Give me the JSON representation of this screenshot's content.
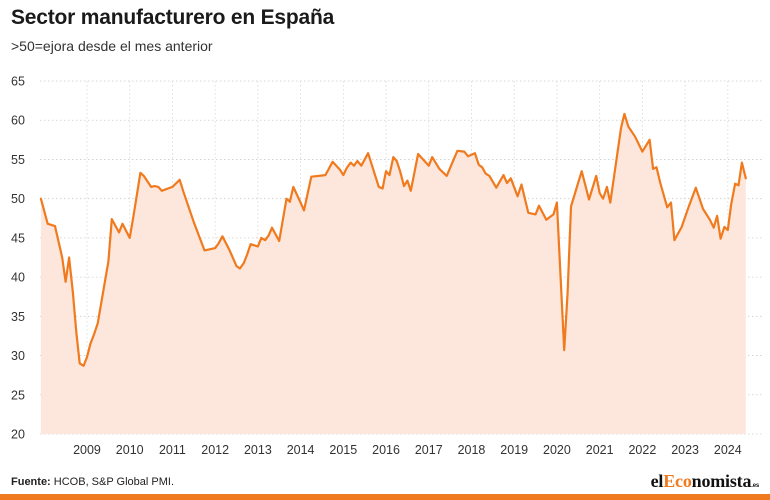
{
  "chart_data": {
    "type": "area",
    "title": "Sector manufacturero en España",
    "subtitle": ">50=ejora desde el mes anterior",
    "ylim": [
      20,
      65
    ],
    "yticks": [
      20,
      25,
      30,
      35,
      40,
      45,
      50,
      55,
      60,
      65
    ],
    "xlim": [
      2007.9,
      2024.8
    ],
    "xticks": [
      2009,
      2010,
      2011,
      2012,
      2013,
      2014,
      2015,
      2016,
      2017,
      2018,
      2019,
      2020,
      2021,
      2022,
      2023,
      2024
    ],
    "grid": true,
    "colors": {
      "line": "#f07a1e",
      "fill": "#fde6dc"
    },
    "series": [
      {
        "x": [
          2007.92,
          2008.08,
          2008.25,
          2008.42,
          2008.5,
          2008.58,
          2008.67,
          2008.75,
          2008.83,
          2008.92,
          2009.0,
          2009.08,
          2009.17,
          2009.25,
          2009.5,
          2009.58,
          2009.67,
          2009.75,
          2009.83,
          2010.0,
          2010.08,
          2010.25,
          2010.33,
          2010.5,
          2010.58,
          2010.67,
          2010.75,
          2011.0,
          2011.17,
          2011.25,
          2011.5,
          2011.75,
          2012.0,
          2012.08,
          2012.17,
          2012.33,
          2012.5,
          2012.58,
          2012.67,
          2012.75,
          2012.83,
          2013.0,
          2013.08,
          2013.17,
          2013.25,
          2013.33,
          2013.5,
          2013.67,
          2013.75,
          2013.83,
          2014.0,
          2014.08,
          2014.25,
          2014.58,
          2014.75,
          2014.92,
          2015.0,
          2015.08,
          2015.17,
          2015.25,
          2015.33,
          2015.42,
          2015.58,
          2015.83,
          2015.92,
          2016.0,
          2016.08,
          2016.17,
          2016.25,
          2016.33,
          2016.42,
          2016.5,
          2016.58,
          2016.75,
          2017.0,
          2017.08,
          2017.25,
          2017.42,
          2017.67,
          2017.83,
          2017.92,
          2018.08,
          2018.17,
          2018.25,
          2018.33,
          2018.42,
          2018.58,
          2018.75,
          2018.83,
          2018.92,
          2019.08,
          2019.17,
          2019.25,
          2019.33,
          2019.5,
          2019.58,
          2019.75,
          2019.92,
          2020.0,
          2020.17,
          2020.25,
          2020.33,
          2020.58,
          2020.75,
          2020.92,
          2021.0,
          2021.08,
          2021.17,
          2021.25,
          2021.5,
          2021.58,
          2021.67,
          2021.83,
          2022.0,
          2022.17,
          2022.25,
          2022.33,
          2022.42,
          2022.58,
          2022.67,
          2022.75,
          2022.92,
          2023.08,
          2023.25,
          2023.42,
          2023.58,
          2023.67,
          2023.75,
          2023.83,
          2023.92,
          2024.0,
          2024.08,
          2024.17,
          2024.25,
          2024.33,
          2024.42
        ],
        "values": [
          50.0,
          46.8,
          46.5,
          42.5,
          39.4,
          42.5,
          38.0,
          33.0,
          29.0,
          28.7,
          29.8,
          31.5,
          32.8,
          34.1,
          42.0,
          47.4,
          46.5,
          45.7,
          46.8,
          45.0,
          47.5,
          53.3,
          52.9,
          51.5,
          51.6,
          51.5,
          51.0,
          51.5,
          52.4,
          51.0,
          47.0,
          43.4,
          43.7,
          44.3,
          45.2,
          43.5,
          41.4,
          41.1,
          41.8,
          42.9,
          44.2,
          43.9,
          45.0,
          44.7,
          45.3,
          46.3,
          44.6,
          50.0,
          49.6,
          51.5,
          49.5,
          48.5,
          52.8,
          53.0,
          54.7,
          53.7,
          53.0,
          53.9,
          54.6,
          54.2,
          54.8,
          54.2,
          55.8,
          51.5,
          51.3,
          53.5,
          53.0,
          55.3,
          54.8,
          53.5,
          51.6,
          52.3,
          51.0,
          55.7,
          54.2,
          55.3,
          53.8,
          52.9,
          56.1,
          56.0,
          55.4,
          55.8,
          54.3,
          54.0,
          53.2,
          52.9,
          51.4,
          53.0,
          52.0,
          52.6,
          50.3,
          51.8,
          50.0,
          48.2,
          48.0,
          49.1,
          47.3,
          48.0,
          49.5,
          30.7,
          38.0,
          49.0,
          53.5,
          49.9,
          52.9,
          50.7,
          50.0,
          51.5,
          49.5,
          59.0,
          60.8,
          59.2,
          57.9,
          56.0,
          57.5,
          53.8,
          54.0,
          52.0,
          48.9,
          49.5,
          44.7,
          46.4,
          48.9,
          51.4,
          48.7,
          47.3,
          46.3,
          47.8,
          44.9,
          46.4,
          46.0,
          49.3,
          51.9,
          51.7,
          54.6,
          52.6
        ]
      }
    ]
  },
  "footer": {
    "source_label": "Fuente:",
    "source_text": " HCOB, S&P Global PMI."
  },
  "logo": {
    "el": "el",
    "eco": "Eco",
    "nom": "nomista",
    "es": ".es"
  }
}
